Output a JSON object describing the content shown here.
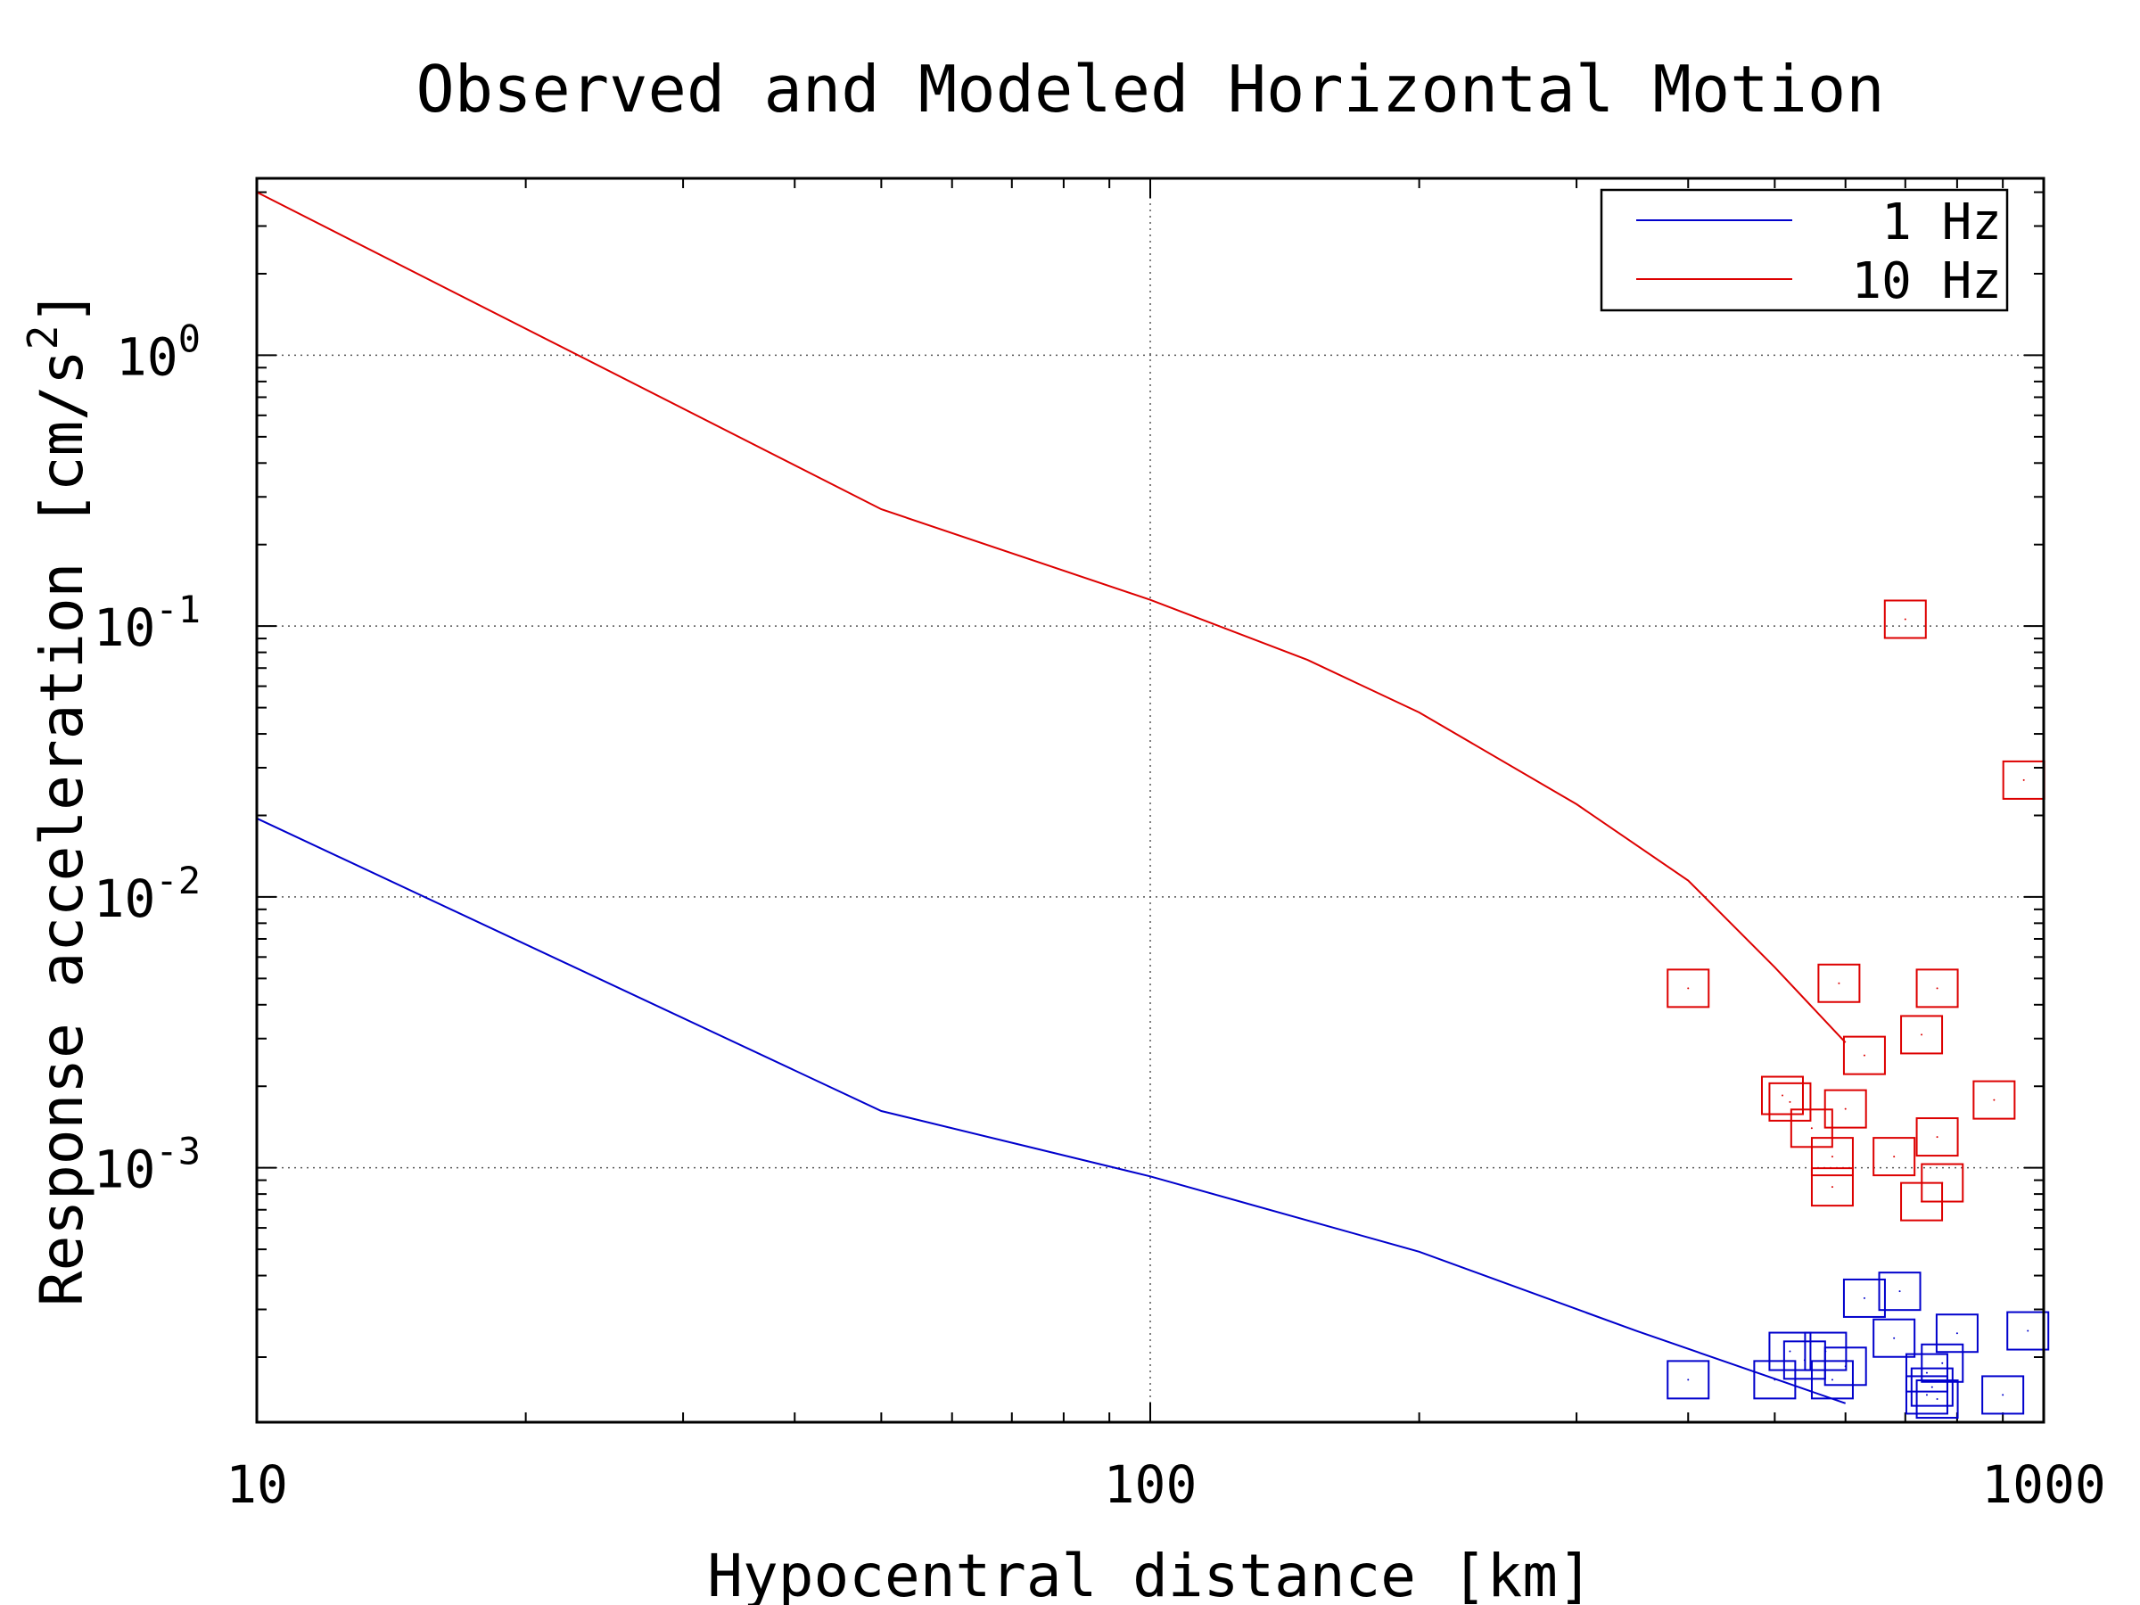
{
  "chart_data": {
    "type": "line",
    "title": "Observed and Modeled Horizontal Motion",
    "xlabel": "Hypocentral distance [km]",
    "ylabel": "Response acceleration [cm/s",
    "ylabel_sup": "2",
    "ylabel_close": "]",
    "xscale": "log",
    "yscale": "log",
    "xlim": [
      10,
      1000
    ],
    "ylim": [
      0.000115,
      4.5
    ],
    "x_ticks": [
      {
        "value": 10,
        "label": "10"
      },
      {
        "value": 100,
        "label": "100"
      },
      {
        "value": 1000,
        "label": "1000"
      }
    ],
    "y_ticks": [
      {
        "value": 1,
        "base": "10",
        "exp": "0"
      },
      {
        "value": 0.1,
        "base": "10",
        "exp": "-1"
      },
      {
        "value": 0.01,
        "base": "10",
        "exp": "-2"
      },
      {
        "value": 0.001,
        "base": "10",
        "exp": "-3"
      }
    ],
    "grid": true,
    "legend_position": "top-right",
    "series": [
      {
        "name": "1 Hz",
        "kind": "line",
        "color": "#0000cc",
        "points": [
          [
            10,
            0.0195
          ],
          [
            50,
            0.00162
          ],
          [
            100,
            0.00093
          ],
          [
            200,
            0.00049
          ],
          [
            350,
            0.00025
          ],
          [
            600,
            0.000135
          ]
        ]
      },
      {
        "name": "10 Hz",
        "kind": "line",
        "color": "#dd0000",
        "points": [
          [
            10,
            4.0
          ],
          [
            50,
            0.27
          ],
          [
            100,
            0.125
          ],
          [
            150,
            0.075
          ],
          [
            200,
            0.048
          ],
          [
            300,
            0.022
          ],
          [
            400,
            0.0115
          ],
          [
            500,
            0.0055
          ],
          [
            600,
            0.0029
          ]
        ]
      },
      {
        "kind": "markers",
        "color": "#dd0000",
        "points": [
          [
            400,
            0.0046
          ],
          [
            590,
            0.0048
          ],
          [
            700,
            0.106
          ],
          [
            760,
            0.0046
          ],
          [
            730,
            0.0031
          ],
          [
            950,
            0.027
          ],
          [
            630,
            0.0026
          ],
          [
            510,
            0.00185
          ],
          [
            520,
            0.00175
          ],
          [
            550,
            0.0014
          ],
          [
            600,
            0.00165
          ],
          [
            580,
            0.0011
          ],
          [
            580,
            0.00085
          ],
          [
            680,
            0.0011
          ],
          [
            760,
            0.0013
          ],
          [
            730,
            0.00075
          ],
          [
            770,
            0.00088
          ],
          [
            880,
            0.00178
          ]
        ]
      },
      {
        "kind": "markers",
        "color": "#0000cc",
        "points": [
          [
            400,
            0.000165
          ],
          [
            500,
            0.000165
          ],
          [
            520,
            0.00021
          ],
          [
            540,
            0.000195
          ],
          [
            570,
            0.00021
          ],
          [
            580,
            0.000165
          ],
          [
            600,
            0.000185
          ],
          [
            630,
            0.00033
          ],
          [
            690,
            0.00035
          ],
          [
            680,
            0.000235
          ],
          [
            740,
            0.000175
          ],
          [
            750,
            0.000155
          ],
          [
            740,
            0.000145
          ],
          [
            760,
            0.00014
          ],
          [
            770,
            0.00019
          ],
          [
            800,
            0.000245
          ],
          [
            900,
            0.000145
          ],
          [
            960,
            0.00025
          ]
        ]
      }
    ]
  }
}
